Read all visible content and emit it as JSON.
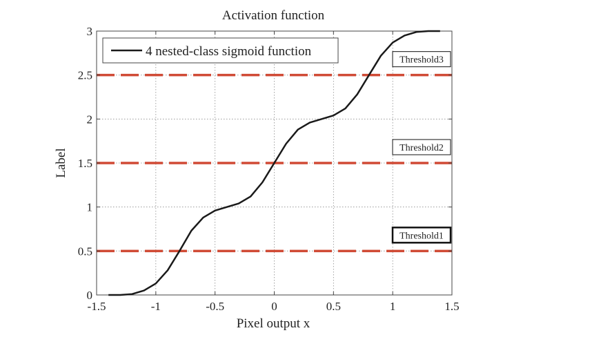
{
  "chart_data": {
    "type": "line",
    "title": "Activation function",
    "xlabel": "Pixel output x",
    "ylabel": "Label",
    "xlim": [
      -1.5,
      1.5
    ],
    "ylim": [
      0,
      3
    ],
    "grid": true,
    "xticks": [
      -1.5,
      -1,
      -0.5,
      0,
      0.5,
      1,
      1.5
    ],
    "xtick_labels": [
      "-1.5",
      "-1",
      "-0.5",
      "0",
      "0.5",
      "1",
      "1.5"
    ],
    "yticks": [
      0,
      0.5,
      1,
      1.5,
      2,
      2.5,
      3
    ],
    "ytick_labels": [
      "0",
      "0.5",
      "1",
      "1.5",
      "2",
      "2.5",
      "3"
    ],
    "legend": {
      "position": "top-left",
      "label": "4 nested-class sigmoid function"
    },
    "series": [
      {
        "name": "4 nested-class sigmoid function",
        "color": "#1a1a1a",
        "x": [
          -1.4,
          -1.3,
          -1.2,
          -1.1,
          -1.0,
          -0.9,
          -0.8,
          -0.7,
          -0.6,
          -0.5,
          -0.4,
          -0.3,
          -0.2,
          -0.1,
          0.0,
          0.1,
          0.2,
          0.3,
          0.4,
          0.5,
          0.6,
          0.7,
          0.8,
          0.9,
          1.0,
          1.1,
          1.2,
          1.3,
          1.4
        ],
        "y": [
          0.0,
          0.0,
          0.01,
          0.05,
          0.13,
          0.28,
          0.5,
          0.73,
          0.88,
          0.96,
          1.0,
          1.04,
          1.12,
          1.28,
          1.5,
          1.72,
          1.88,
          1.96,
          2.0,
          2.04,
          2.12,
          2.28,
          2.5,
          2.72,
          2.87,
          2.95,
          2.99,
          3.0,
          3.0
        ]
      }
    ],
    "thresholds": [
      {
        "label": "Threshold1",
        "y": 0.5,
        "color": "#d04a35"
      },
      {
        "label": "Threshold2",
        "y": 1.5,
        "color": "#d04a35"
      },
      {
        "label": "Threshold3",
        "y": 2.5,
        "color": "#d04a35"
      }
    ]
  }
}
